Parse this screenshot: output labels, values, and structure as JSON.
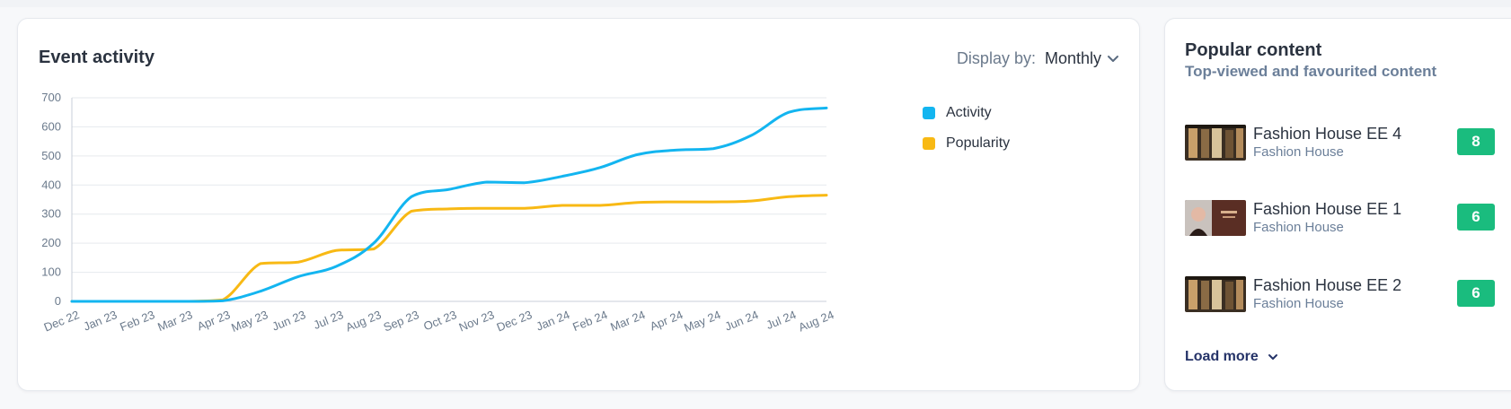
{
  "event_activity": {
    "title": "Event activity",
    "display_by_label": "Display by:",
    "display_by_value": "Monthly"
  },
  "popular_content": {
    "title": "Popular content",
    "subtitle": "Top-viewed and favourited content",
    "items": [
      {
        "title": "Fashion House EE 4",
        "subtitle": "Fashion House",
        "count": "8"
      },
      {
        "title": "Fashion House EE 1",
        "subtitle": "Fashion House",
        "count": "6"
      },
      {
        "title": "Fashion House EE 2",
        "subtitle": "Fashion House",
        "count": "6"
      }
    ],
    "load_more_label": "Load more"
  },
  "chart_data": {
    "type": "line",
    "title": "",
    "xlabel": "",
    "ylabel": "",
    "categories": [
      "Dec 22",
      "Jan 23",
      "Feb 23",
      "Mar 23",
      "Apr 23",
      "May 23",
      "Jun 23",
      "Jul 23",
      "Aug 23",
      "Sep 23",
      "Oct 23",
      "Nov 23",
      "Dec 23",
      "Jan 24",
      "Feb 24",
      "Mar 24",
      "Apr 24",
      "May 24",
      "Jun 24",
      "Jul 24",
      "Aug 24"
    ],
    "y_ticks": [
      "0",
      "100",
      "200",
      "300",
      "400",
      "500",
      "600",
      "700"
    ],
    "ylim": [
      0,
      700
    ],
    "grid": true,
    "legend_position": "right",
    "series": [
      {
        "name": "Activity",
        "color": "#13b5f0",
        "values": [
          0,
          0,
          0,
          0,
          2,
          35,
          85,
          120,
          200,
          360,
          385,
          410,
          408,
          430,
          460,
          505,
          520,
          525,
          570,
          650,
          665
        ]
      },
      {
        "name": "Popularity",
        "color": "#f8b914",
        "values": [
          0,
          0,
          0,
          0,
          5,
          130,
          135,
          175,
          180,
          310,
          318,
          320,
          320,
          330,
          330,
          340,
          342,
          342,
          345,
          360,
          365
        ]
      }
    ]
  }
}
